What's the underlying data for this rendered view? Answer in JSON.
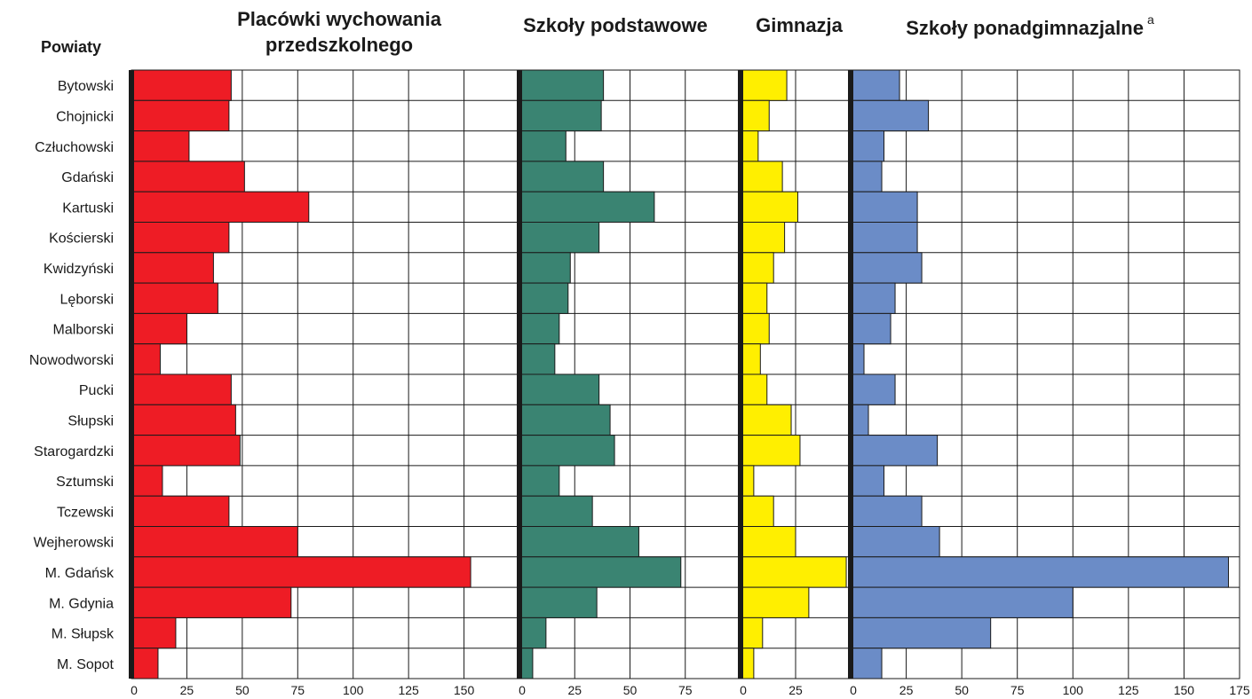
{
  "chart_data": {
    "type": "bar",
    "orientation": "horizontal",
    "row_header": "Powiaty",
    "categories": [
      "Bytowski",
      "Chojnicki",
      "Człuchowski",
      "Gdański",
      "Kartuski",
      "Kościerski",
      "Kwidzyński",
      "Lęborski",
      "Malborski",
      "Nowodworski",
      "Pucki",
      "Słupski",
      "Starogardzki",
      "Sztumski",
      "Tczewski",
      "Wejherowski",
      "M. Gdańsk",
      "M. Gdynia",
      "M. Słupsk",
      "M. Sopot"
    ],
    "panels": [
      {
        "title": [
          "Placówki wychowania",
          "przedszkolnego"
        ],
        "superscript": "",
        "color": "#ee1c25",
        "xlim": [
          0,
          175
        ],
        "ticks": [
          "0",
          "25",
          "50",
          "75",
          "100",
          "125",
          "150"
        ],
        "tick_values": [
          0,
          25,
          50,
          75,
          100,
          125,
          150
        ],
        "values": [
          45,
          44,
          26,
          51,
          80,
          44,
          37,
          39,
          25,
          13,
          45,
          47,
          49,
          14,
          44,
          75,
          153,
          72,
          20,
          12
        ]
      },
      {
        "title": [
          "Szkoły podstawowe"
        ],
        "superscript": "",
        "color": "#3a8472",
        "xlim": [
          0,
          100
        ],
        "ticks": [
          "0",
          "25",
          "50",
          "75"
        ],
        "tick_values": [
          0,
          25,
          50,
          75
        ],
        "values": [
          38,
          37,
          21,
          38,
          61,
          36,
          23,
          22,
          18,
          16,
          36,
          41,
          43,
          18,
          33,
          54,
          73,
          35,
          12,
          6
        ]
      },
      {
        "title": [
          "Gimnazja"
        ],
        "superscript": "",
        "color": "#ffef00",
        "xlim": [
          0,
          50
        ],
        "ticks": [
          "0",
          "25"
        ],
        "tick_values": [
          0,
          25
        ],
        "values": [
          21,
          13,
          8,
          19,
          26,
          20,
          15,
          12,
          13,
          9,
          12,
          23,
          27,
          6,
          15,
          25,
          48,
          31,
          10,
          6
        ]
      },
      {
        "title": [
          "Szkoły ponadgimnazjalne"
        ],
        "superscript": "a",
        "color": "#6b8cc7",
        "xlim": [
          0,
          175
        ],
        "ticks": [
          "0",
          "25",
          "50",
          "75",
          "100",
          "125",
          "150",
          "175"
        ],
        "tick_values": [
          0,
          25,
          50,
          75,
          100,
          125,
          150,
          175
        ],
        "values": [
          22,
          35,
          15,
          14,
          30,
          30,
          32,
          20,
          18,
          6,
          20,
          8,
          39,
          15,
          32,
          40,
          170,
          100,
          63,
          14
        ]
      }
    ],
    "grid": true
  }
}
